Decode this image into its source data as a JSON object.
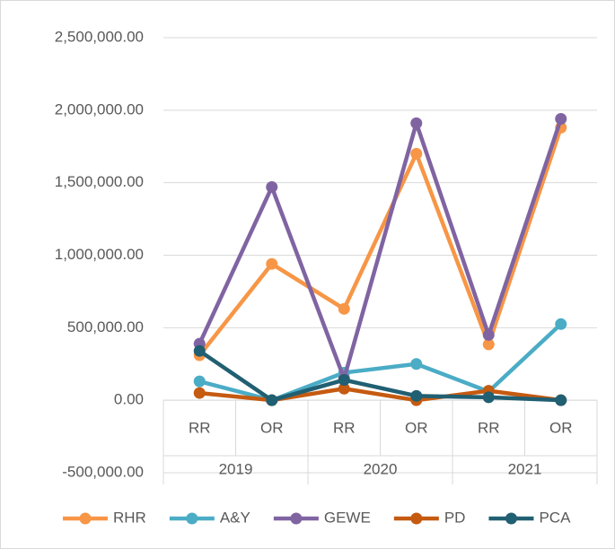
{
  "chart_data": {
    "type": "line",
    "categories": [
      "RR",
      "OR",
      "RR",
      "OR",
      "RR",
      "OR"
    ],
    "groups": [
      "2019",
      "2020",
      "2021"
    ],
    "series": [
      {
        "name": "RHR",
        "color": "#f79646",
        "values": [
          310000,
          940000,
          630000,
          1700000,
          385000,
          1880000
        ]
      },
      {
        "name": "A&Y",
        "color": "#4bacc6",
        "values": [
          130000,
          0,
          190000,
          250000,
          60000,
          525000
        ]
      },
      {
        "name": "GEWE",
        "color": "#8064a2",
        "values": [
          390000,
          1470000,
          150000,
          1910000,
          450000,
          1940000
        ]
      },
      {
        "name": "PD",
        "color": "#c55a11",
        "values": [
          50000,
          0,
          80000,
          0,
          65000,
          0
        ]
      },
      {
        "name": "PCA",
        "color": "#215f72",
        "values": [
          340000,
          0,
          140000,
          30000,
          20000,
          0
        ]
      }
    ],
    "ylim": [
      -500000,
      2500000
    ],
    "yticks": [
      {
        "value": -500000,
        "label": "-500,000.00"
      },
      {
        "value": 0,
        "label": "0.00"
      },
      {
        "value": 500000,
        "label": "500,000.00"
      },
      {
        "value": 1000000,
        "label": "1,000,000.00"
      },
      {
        "value": 1500000,
        "label": "1,500,000.00"
      },
      {
        "value": 2000000,
        "label": "2,000,000.00"
      },
      {
        "value": 2500000,
        "label": "2,500,000.00"
      }
    ],
    "grid": true,
    "legend": "bottom"
  }
}
